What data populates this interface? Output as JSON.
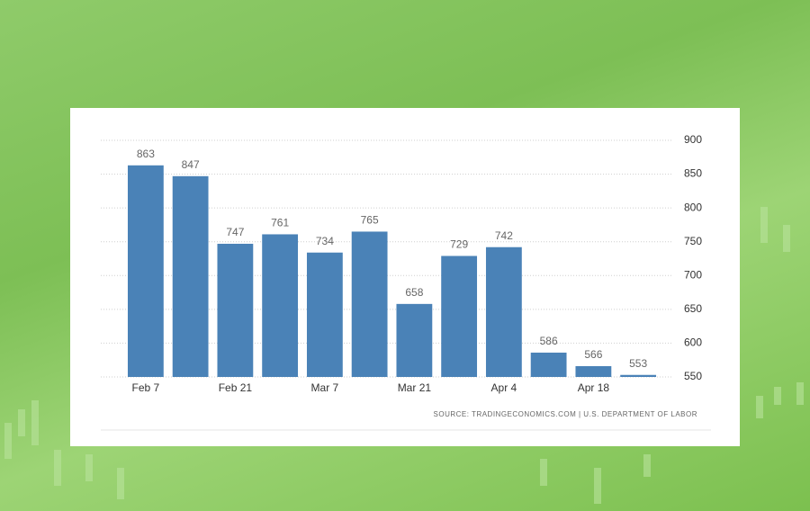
{
  "chart_data": {
    "type": "bar",
    "categories": [
      "Feb 7",
      null,
      "Feb 21",
      null,
      "Mar 7",
      null,
      "Mar 21",
      null,
      "Apr 4",
      null,
      "Apr 18",
      null
    ],
    "values": [
      863,
      847,
      747,
      761,
      734,
      765,
      658,
      729,
      742,
      586,
      566,
      553
    ],
    "color": "#4a82b7",
    "ylim": [
      550,
      900
    ],
    "yticks": [
      550,
      600,
      650,
      700,
      750,
      800,
      850,
      900
    ],
    "grid": true,
    "y_axis_side": "right",
    "source": "SOURCE: TRADINGECONOMICS.COM | U.S. DEPARTMENT OF LABOR"
  }
}
